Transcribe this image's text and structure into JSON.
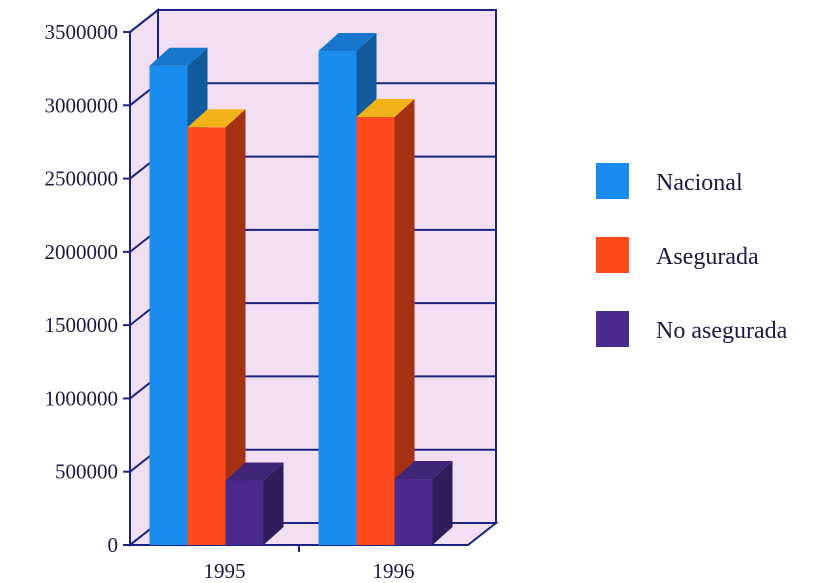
{
  "chart_data": {
    "type": "bar",
    "categories": [
      "1995",
      "1996"
    ],
    "series": [
      {
        "name": "Nacional",
        "values": [
          3270000,
          3370000
        ],
        "color": "#1a8cf0"
      },
      {
        "name": "Asegurada",
        "values": [
          2850000,
          2920000
        ],
        "color": "#ff4a1c"
      },
      {
        "name": "No asegurada",
        "values": [
          440000,
          450000
        ],
        "color": "#4a2a8c"
      }
    ],
    "y_ticks": [
      "0",
      "500000",
      "1000000",
      "1500000",
      "2000000",
      "2500000",
      "3000000",
      "3500000"
    ],
    "ylim": [
      0,
      3500000
    ],
    "grid": true,
    "three_d": true,
    "legend_position": "right",
    "title": "",
    "xlabel": "",
    "ylabel": ""
  },
  "colors": {
    "plot_back": "#f3dff3",
    "axis": "#1a237e"
  }
}
